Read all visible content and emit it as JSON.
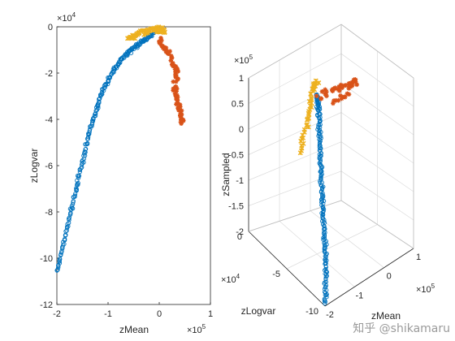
{
  "chart_data": [
    {
      "type": "scatter",
      "view": "2d",
      "xlabel": "zMean",
      "ylabel": "zLogvar",
      "xlim": [
        -2,
        1
      ],
      "ylim": [
        -12,
        0
      ],
      "x_exponent": "×10^5",
      "y_exponent": "×10^4",
      "x_ticks": [
        "-2",
        "-1",
        "0",
        "1"
      ],
      "y_ticks": [
        "0",
        "-2",
        "-4",
        "-6",
        "-8",
        "-10",
        "-12"
      ],
      "grid": false,
      "series": [
        {
          "marker": "circle",
          "color": "#0072BD",
          "points": [
            [
              -2.0,
              -10.6
            ],
            [
              -1.85,
              -9.2
            ],
            [
              -1.7,
              -7.7
            ],
            [
              -1.55,
              -6.3
            ],
            [
              -1.4,
              -4.9
            ],
            [
              -1.25,
              -3.7
            ],
            [
              -1.1,
              -2.7
            ],
            [
              -0.9,
              -1.9
            ],
            [
              -0.7,
              -1.3
            ],
            [
              -0.5,
              -0.9
            ],
            [
              -0.3,
              -0.6
            ],
            [
              -0.1,
              -0.25
            ]
          ]
        },
        {
          "marker": "cross",
          "color": "#EDB120",
          "points": [
            [
              -0.6,
              -0.5
            ],
            [
              -0.4,
              -0.3
            ],
            [
              -0.2,
              -0.15
            ],
            [
              0.0,
              -0.1
            ],
            [
              0.1,
              -0.2
            ]
          ]
        },
        {
          "marker": "star",
          "color": "#D95319",
          "points": [
            [
              0.0,
              -0.6
            ],
            [
              0.2,
              -1.2
            ],
            [
              0.35,
              -2.0
            ],
            [
              0.3,
              -2.8
            ],
            [
              0.4,
              -3.6
            ],
            [
              0.45,
              -4.2
            ]
          ]
        }
      ]
    },
    {
      "type": "scatter",
      "view": "3d",
      "xlabel": "zMean",
      "ylabel": "zLogvar",
      "zlabel": "zSampled",
      "x_exponent": "×10^5",
      "y_exponent": "×10^4",
      "z_exponent": "×10^5",
      "x_ticks": [
        "-2",
        "-1",
        "0",
        "1"
      ],
      "y_ticks": [
        "0",
        "-5",
        "-10"
      ],
      "z_ticks": [
        "1",
        "0.5",
        "0",
        "-0.5",
        "-1",
        "-1.5",
        "-2"
      ],
      "grid": true,
      "series": [
        {
          "marker": "circle",
          "color": "#0072BD"
        },
        {
          "marker": "cross",
          "color": "#EDB120"
        },
        {
          "marker": "star",
          "color": "#D95319"
        }
      ]
    }
  ],
  "watermark": "知乎 @shikamaru"
}
